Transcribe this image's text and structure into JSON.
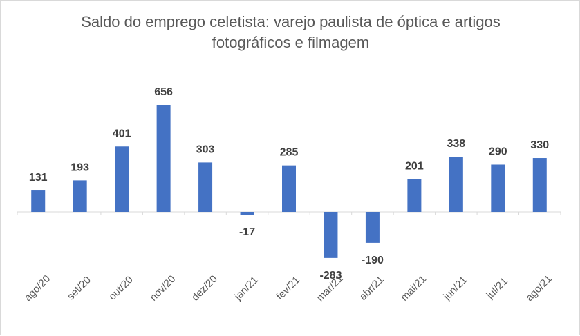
{
  "chart_data": {
    "type": "bar",
    "title": "Saldo do emprego celetista: varejo paulista de óptica e artigos fotográficos e filmagem",
    "categories": [
      "ago/20",
      "set/20",
      "out/20",
      "nov/20",
      "dez/20",
      "jan/21",
      "fev/21",
      "mar/21",
      "abr/21",
      "mai/21",
      "jun/21",
      "jul/21",
      "ago/21"
    ],
    "values": [
      131,
      193,
      401,
      656,
      303,
      -17,
      285,
      -283,
      -190,
      201,
      338,
      290,
      330
    ],
    "data_labels": true,
    "grid": false,
    "legend": "none",
    "bar_color": "#4472c4"
  }
}
